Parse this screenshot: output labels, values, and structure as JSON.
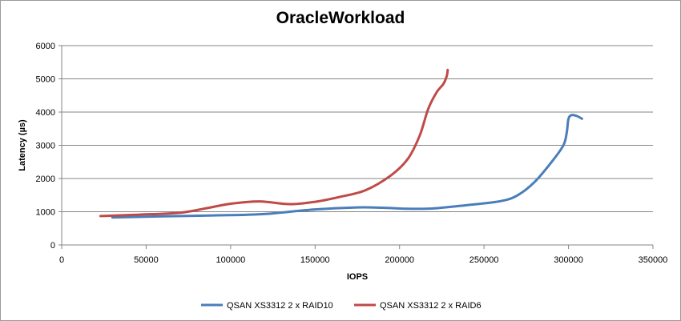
{
  "chart_data": {
    "type": "line",
    "title": "OracleWorkload",
    "xlabel": "IOPS",
    "ylabel": "Latency (µs)",
    "xlim": [
      0,
      350000
    ],
    "ylim": [
      0,
      6000
    ],
    "x_ticks": [
      "0",
      "50000",
      "100000",
      "150000",
      "200000",
      "250000",
      "300000",
      "350000"
    ],
    "y_ticks": [
      "0",
      "1000",
      "2000",
      "3000",
      "4000",
      "5000",
      "6000"
    ],
    "grid": true,
    "legend_position": "bottom",
    "series": [
      {
        "name": "QSAN XS3312 2 x RAID10",
        "color": "#4a7ebb",
        "points": [
          [
            30000,
            830
          ],
          [
            60000,
            860
          ],
          [
            90000,
            890
          ],
          [
            110000,
            910
          ],
          [
            125000,
            950
          ],
          [
            150000,
            1070
          ],
          [
            175000,
            1130
          ],
          [
            190000,
            1120
          ],
          [
            205000,
            1090
          ],
          [
            220000,
            1100
          ],
          [
            240000,
            1200
          ],
          [
            260000,
            1320
          ],
          [
            270000,
            1500
          ],
          [
            280000,
            1900
          ],
          [
            290000,
            2500
          ],
          [
            297000,
            3000
          ],
          [
            299000,
            3400
          ],
          [
            300000,
            3800
          ],
          [
            302000,
            3910
          ],
          [
            305000,
            3880
          ],
          [
            308000,
            3800
          ]
        ]
      },
      {
        "name": "QSAN XS3312 2 x RAID6",
        "color": "#be4b48",
        "points": [
          [
            23000,
            870
          ],
          [
            45000,
            910
          ],
          [
            70000,
            970
          ],
          [
            85000,
            1100
          ],
          [
            100000,
            1240
          ],
          [
            117000,
            1310
          ],
          [
            135000,
            1230
          ],
          [
            150000,
            1300
          ],
          [
            165000,
            1450
          ],
          [
            180000,
            1650
          ],
          [
            195000,
            2100
          ],
          [
            205000,
            2600
          ],
          [
            212000,
            3300
          ],
          [
            217000,
            4100
          ],
          [
            222000,
            4600
          ],
          [
            226000,
            4850
          ],
          [
            228000,
            5100
          ],
          [
            228500,
            5270
          ]
        ]
      }
    ]
  }
}
